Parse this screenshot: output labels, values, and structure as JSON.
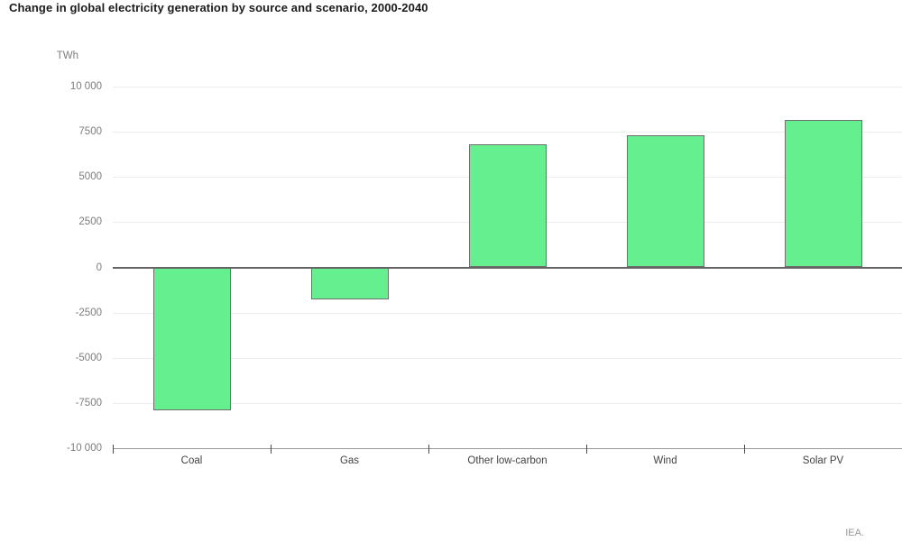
{
  "page": {
    "background": "#ffffff"
  },
  "header": {
    "title": "Change in global electricity generation by source and scenario, 2000-2040"
  },
  "footer": {
    "credit": "IEA."
  },
  "chart_data": {
    "type": "bar",
    "title": "Change in global electricity generation by source and scenario, 2000-2040",
    "unit_label": "TWh",
    "xlabel": "",
    "ylabel": "TWh",
    "categories": [
      "Coal",
      "Gas",
      "Other low-carbon",
      "Wind",
      "Solar PV"
    ],
    "values": [
      -7900,
      -1750,
      6800,
      7300,
      8150
    ],
    "ylim": [
      -10000,
      10000
    ],
    "yticks": [
      {
        "value": 10000,
        "label": "10 000"
      },
      {
        "value": 7500,
        "label": "7500"
      },
      {
        "value": 5000,
        "label": "5000"
      },
      {
        "value": 2500,
        "label": "2500"
      },
      {
        "value": 0,
        "label": "0"
      },
      {
        "value": -2500,
        "label": "-2500"
      },
      {
        "value": -5000,
        "label": "-5000"
      },
      {
        "value": -7500,
        "label": "-7500"
      },
      {
        "value": -10000,
        "label": "-10 000"
      }
    ],
    "grid": true,
    "legend_position": "none",
    "bar_color": "#66ef8f",
    "bar_border_color": "#6f6f6f",
    "zero_line_color": "#646464",
    "credit": "IEA."
  }
}
